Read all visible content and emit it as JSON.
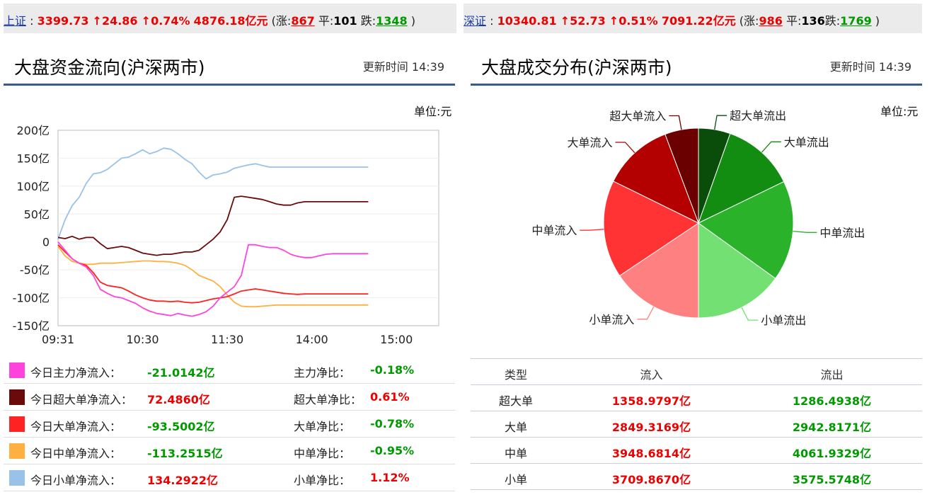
{
  "ticker_sh": {
    "name": "上证",
    "price": "3399.73",
    "chg": "↑24.86",
    "pct": "↑0.74%",
    "amount": "4876.18亿元",
    "up_label": "涨:",
    "up": "867",
    "flat_label": "平:",
    "flat": "101",
    "down_label": "跌:",
    "down": "1348"
  },
  "ticker_sz": {
    "name": "深证",
    "price": "10340.81",
    "chg": "↑52.73",
    "pct": "↑0.51%",
    "amount": "7091.22亿元",
    "up_label": "涨:",
    "up": "986",
    "flat_label": "平:",
    "flat": "136",
    "down_label": "跌:",
    "down": "1769"
  },
  "left_panel": {
    "title": "大盘资金流向(沪深两市)",
    "update_time": "更新时间 14:39",
    "unit": "单位:元"
  },
  "right_panel": {
    "title": "大盘成交分布(沪深两市)",
    "update_time": "更新时间 14:39",
    "unit": "单位:元"
  },
  "colors": {
    "main": "#ff44dd",
    "super": "#6b0a0a",
    "large": "#ff2222",
    "medium": "#ffb040",
    "small": "#99c2e8",
    "up": "#e00000",
    "down": "#009900"
  },
  "chart_data": [
    {
      "type": "line",
      "title": "大盘资金流向(沪深两市)",
      "unit": "亿",
      "ylim": [
        -150,
        200
      ],
      "yticks": [
        "200亿",
        "150亿",
        "100亿",
        "50亿",
        "0",
        "-50亿",
        "-100亿",
        "-150亿"
      ],
      "ytick_values": [
        200,
        150,
        100,
        50,
        0,
        -50,
        -100,
        -150
      ],
      "xtick_labels": [
        "09:31",
        "10:30",
        "11:30",
        "14:00",
        "15:00"
      ],
      "x": [
        0,
        5,
        10,
        15,
        20,
        25,
        30,
        35,
        40,
        45,
        50,
        55,
        60,
        65,
        70,
        75,
        80,
        85,
        90,
        95,
        100,
        105,
        110,
        115,
        120,
        125,
        130,
        135,
        140,
        145,
        150,
        155,
        160,
        165,
        170,
        175,
        180,
        185,
        190,
        195,
        200,
        205,
        210,
        215,
        220
      ],
      "series": [
        {
          "name": "今日主力净流入",
          "color": "#ff44dd",
          "values": [
            0,
            -15,
            -30,
            -38,
            -45,
            -60,
            -85,
            -92,
            -98,
            -100,
            -105,
            -110,
            -118,
            -124,
            -128,
            -130,
            -132,
            -128,
            -131,
            -133,
            -130,
            -125,
            -115,
            -100,
            -90,
            -80,
            -60,
            -5,
            -5,
            -8,
            -10,
            -10,
            -15,
            -22,
            -26,
            -28,
            -28,
            -25,
            -22,
            -21,
            -21,
            -21,
            -21,
            -21,
            -21
          ]
        },
        {
          "name": "今日超大单净流入",
          "color": "#6b0a0a",
          "values": [
            8,
            6,
            10,
            5,
            8,
            8,
            -3,
            -12,
            -10,
            -8,
            -10,
            -15,
            -20,
            -22,
            -24,
            -22,
            -22,
            -20,
            -18,
            -18,
            -15,
            -5,
            5,
            18,
            40,
            80,
            82,
            80,
            78,
            76,
            72,
            68,
            66,
            66,
            70,
            72,
            72,
            72,
            72,
            72,
            72,
            72,
            72,
            72,
            72
          ]
        },
        {
          "name": "今日大单净流入",
          "color": "#ff2222",
          "values": [
            -5,
            -18,
            -30,
            -38,
            -42,
            -55,
            -72,
            -78,
            -80,
            -82,
            -88,
            -95,
            -100,
            -104,
            -106,
            -106,
            -107,
            -106,
            -108,
            -109,
            -108,
            -105,
            -102,
            -100,
            -98,
            -93,
            -88,
            -86,
            -84,
            -86,
            -88,
            -90,
            -92,
            -93,
            -94,
            -93,
            -93,
            -93,
            -93,
            -93,
            -93,
            -93,
            -93,
            -93,
            -93
          ]
        },
        {
          "name": "今日中单净流入",
          "color": "#ffb040",
          "values": [
            -8,
            -25,
            -35,
            -38,
            -40,
            -40,
            -38,
            -38,
            -38,
            -37,
            -36,
            -35,
            -34,
            -34,
            -35,
            -35,
            -36,
            -38,
            -42,
            -50,
            -60,
            -65,
            -70,
            -80,
            -95,
            -108,
            -115,
            -116,
            -116,
            -115,
            -114,
            -113,
            -113,
            -113,
            -113,
            -113,
            -113,
            -113,
            -113,
            -113,
            -113,
            -113,
            -113,
            -113,
            -113
          ]
        },
        {
          "name": "今日小单净流入",
          "color": "#99c2e8",
          "values": [
            5,
            40,
            65,
            80,
            105,
            122,
            124,
            130,
            140,
            150,
            152,
            158,
            165,
            158,
            162,
            168,
            166,
            158,
            148,
            140,
            125,
            113,
            120,
            122,
            125,
            132,
            135,
            138,
            140,
            137,
            134,
            134,
            134,
            134,
            134,
            134,
            134,
            134,
            134,
            134,
            134,
            134,
            134,
            134,
            134
          ]
        }
      ]
    },
    {
      "type": "pie",
      "title": "大盘成交分布(沪深两市)",
      "labels": [
        "超大单流出",
        "大单流出",
        "中单流出",
        "小单流出",
        "小单流入",
        "中单流入",
        "大单流入",
        "超大单流入"
      ],
      "values": [
        1286.4938,
        2942.8171,
        4061.9329,
        3575.5748,
        3709.867,
        3948.6814,
        2849.3169,
        1358.9797
      ],
      "colors": [
        "#0a4d0a",
        "#128d12",
        "#2ab32a",
        "#72e072",
        "#ff8080",
        "#ff3333",
        "#b30000",
        "#6b0000"
      ]
    }
  ],
  "legend": [
    {
      "label": "今日主力净流入：",
      "value": "-21.0142亿",
      "ratio_label": "主力净比：",
      "ratio": "-0.18%",
      "value_dir": "down",
      "ratio_dir": "down"
    },
    {
      "label": "今日超大单净流入：",
      "value": "72.4860亿",
      "ratio_label": "超大单净比：",
      "ratio": "0.61%",
      "value_dir": "up",
      "ratio_dir": "up"
    },
    {
      "label": "今日大单净流入：",
      "value": "-93.5002亿",
      "ratio_label": "大单净比：",
      "ratio": "-0.78%",
      "value_dir": "down",
      "ratio_dir": "down"
    },
    {
      "label": "今日中单净流入：",
      "value": "-113.2515亿",
      "ratio_label": "中单净比：",
      "ratio": "-0.95%",
      "value_dir": "down",
      "ratio_dir": "down"
    },
    {
      "label": "今日小单净流入：",
      "value": "134.2922亿",
      "ratio_label": "小单净比：",
      "ratio": "1.12%",
      "value_dir": "up",
      "ratio_dir": "up"
    }
  ],
  "table": {
    "headers": [
      "类型",
      "流入",
      "流出"
    ],
    "rows": [
      [
        "超大单",
        "1358.9797亿",
        "1286.4938亿"
      ],
      [
        "大单",
        "2849.3169亿",
        "2942.8171亿"
      ],
      [
        "中单",
        "3948.6814亿",
        "4061.9329亿"
      ],
      [
        "小单",
        "3709.8670亿",
        "3575.5748亿"
      ]
    ]
  }
}
